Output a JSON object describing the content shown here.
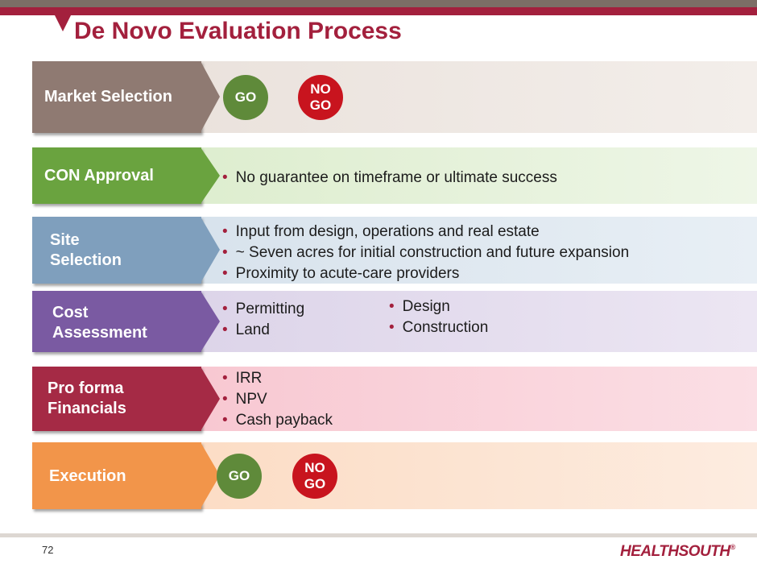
{
  "slide": {
    "title": "De Novo Evaluation Process",
    "page_number": "72",
    "logo_text": "HEALTHSOUTH",
    "logo_mark": "®"
  },
  "colors": {
    "brand_red": "#a3203d",
    "go_green": "#5f8a3a",
    "nogo_red": "#c8141e"
  },
  "rows": [
    {
      "label": "Market Selection",
      "go": "GO",
      "nogo": "NO\nGO"
    },
    {
      "label": "CON Approval",
      "bullets": [
        "No guarantee on timeframe or ultimate success"
      ]
    },
    {
      "label": "Site\nSelection",
      "bullets": [
        "Input from design, operations and real estate",
        "~ Seven acres for initial construction and future expansion",
        "Proximity to acute-care providers"
      ]
    },
    {
      "label": "Cost\nAssessment",
      "bullets_left": [
        "Permitting",
        "Land"
      ],
      "bullets_right": [
        "Design",
        "Construction"
      ]
    },
    {
      "label": "Pro forma\nFinancials",
      "bullets": [
        "IRR",
        "NPV",
        "Cash payback"
      ]
    },
    {
      "label": "Execution",
      "go": "GO",
      "nogo": "NO\nGO"
    }
  ],
  "bullet_glyph": "•"
}
